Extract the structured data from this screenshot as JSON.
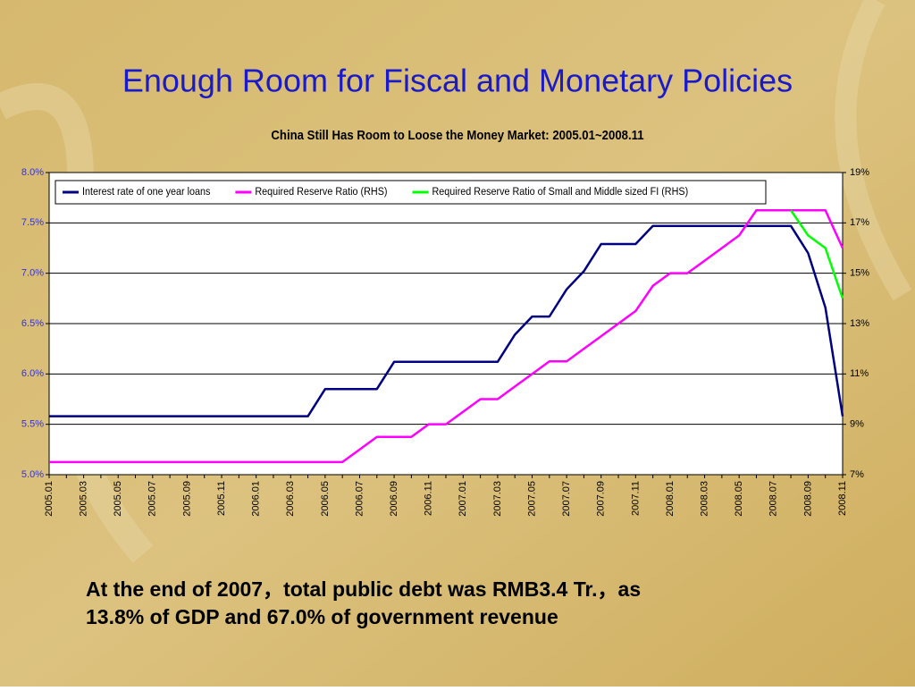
{
  "title": "Enough Room for Fiscal and Monetary Policies",
  "body_text": [
    "At the end of 2007，total public debt was RMB3.4 Tr.，as",
    "13.8% of GDP and 67.0% of government revenue"
  ],
  "chart_data": {
    "type": "line",
    "title": "China Still Has Room to Loose the Money Market: 2005.01~2008.11",
    "categories": [
      "2005.01",
      null,
      "2005.03",
      null,
      "2005.05",
      null,
      "2005.07",
      null,
      "2005.09",
      null,
      "2005.11",
      null,
      "2006.01",
      null,
      "2006.03",
      null,
      "2006.05",
      null,
      "2006.07",
      null,
      "2006.09",
      null,
      "2006.11",
      null,
      "2007.01",
      null,
      "2007.03",
      null,
      "2007.05",
      null,
      "2007.07",
      null,
      "2007.09",
      null,
      "2007.11",
      null,
      "2008.01",
      null,
      "2008.03",
      null,
      "2008.05",
      null,
      "2008.07",
      null,
      "2008.09",
      null,
      "2008.11"
    ],
    "series": [
      {
        "name": "Interest rate of one year loans",
        "color": "#000080",
        "values": [
          5.58,
          5.58,
          5.58,
          5.58,
          5.58,
          5.58,
          5.58,
          5.58,
          5.58,
          5.58,
          5.58,
          5.58,
          5.58,
          5.58,
          5.58,
          5.58,
          5.85,
          5.85,
          5.85,
          5.85,
          6.12,
          6.12,
          6.12,
          6.12,
          6.12,
          6.12,
          6.12,
          6.39,
          6.57,
          6.57,
          6.84,
          7.02,
          7.29,
          7.29,
          7.29,
          7.47,
          7.47,
          7.47,
          7.47,
          7.47,
          7.47,
          7.47,
          7.47,
          7.47,
          7.2,
          6.66,
          5.58
        ]
      },
      {
        "name": "Required Reserve Ratio (RHS)",
        "color": "#ff00ff",
        "axis": "y2",
        "values": [
          7.5,
          7.5,
          7.5,
          7.5,
          7.5,
          7.5,
          7.5,
          7.5,
          7.5,
          7.5,
          7.5,
          7.5,
          7.5,
          7.5,
          7.5,
          7.5,
          7.5,
          7.5,
          8,
          8.5,
          8.5,
          8.5,
          9,
          9,
          9.5,
          10,
          10,
          10.5,
          11,
          11.5,
          11.5,
          12,
          12.5,
          13,
          13.5,
          14.5,
          15,
          15,
          15.5,
          16,
          16.5,
          17.5,
          17.5,
          17.5,
          17.5,
          17.5,
          16
        ]
      },
      {
        "name": "Required Reserve Ratio of Small and Middle sized FI (RHS)",
        "color": "#00ff00",
        "axis": "y2",
        "values": [
          null,
          null,
          null,
          null,
          null,
          null,
          null,
          null,
          null,
          null,
          null,
          null,
          null,
          null,
          null,
          null,
          null,
          null,
          null,
          null,
          null,
          null,
          null,
          null,
          null,
          null,
          null,
          null,
          null,
          null,
          null,
          null,
          null,
          null,
          null,
          null,
          null,
          null,
          null,
          null,
          null,
          null,
          null,
          17.5,
          16.5,
          16,
          14
        ]
      }
    ],
    "ylim": [
      5,
      8
    ],
    "yticks": [
      {
        "value": 5,
        "label": "5.0%"
      },
      {
        "value": 5.5,
        "label": "5.5%"
      },
      {
        "value": 6,
        "label": "6.0%"
      },
      {
        "value": 6.5,
        "label": "6.5%"
      },
      {
        "value": 7,
        "label": "7.0%"
      },
      {
        "value": 7.5,
        "label": "7.5%"
      },
      {
        "value": 8,
        "label": "8.0%"
      }
    ],
    "y2lim": [
      7,
      19
    ],
    "y2ticks": [
      {
        "value": 7,
        "label": "7%"
      },
      {
        "value": 9,
        "label": "9%"
      },
      {
        "value": 11,
        "label": "11%"
      },
      {
        "value": 13,
        "label": "13%"
      },
      {
        "value": 15,
        "label": "15%"
      },
      {
        "value": 17,
        "label": "17%"
      },
      {
        "value": 19,
        "label": "19%"
      }
    ],
    "grid": true,
    "legend": "top"
  }
}
